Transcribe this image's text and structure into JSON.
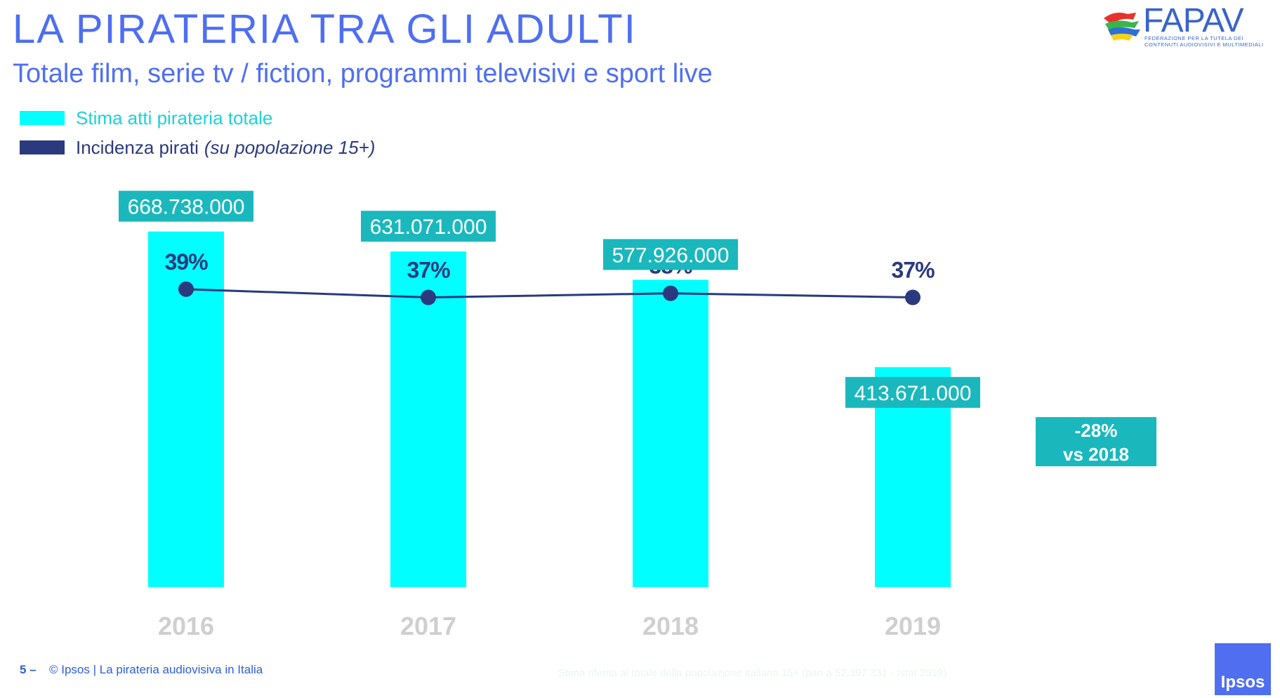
{
  "header": {
    "title": "LA PIRATERIA TRA GLI ADULTI",
    "subtitle": "Totale film, serie tv / fiction, programmi televisivi e sport live"
  },
  "legend": {
    "bars_label": "Stima atti pirateria totale",
    "line_label": "Incidenza pirati",
    "line_label_note": "(su popolazione 15+)"
  },
  "logo": {
    "name": "FAPAV",
    "tagline": "FEDERAZIONE PER LA TUTELA DEI CONTENUTI AUDIOVISIVI E MULTIMEDIALI"
  },
  "callout": {
    "line1": "-28%",
    "line2": "vs 2018"
  },
  "footer": {
    "page_number": "5 –",
    "text": "© Ipsos | La pirateria audiovisiva in Italia",
    "note": "Stima riferita al totale della popolazione italiana 15+ (pari a 52.397.331 - Istat 2019)",
    "ipsos_label": "Ipsos"
  },
  "colors": {
    "bars": "#00ffff",
    "line": "#2b3a7e",
    "title": "#4f6ff0",
    "year_labels": "#cfcfcf",
    "callout": "#1ab8bd"
  },
  "chart_data": {
    "type": "bar",
    "categories": [
      "2016",
      "2017",
      "2018",
      "2019"
    ],
    "series": [
      {
        "name": "Stima atti pirateria totale",
        "type": "bar",
        "values": [
          668738000,
          631071000,
          577926000,
          413671000
        ],
        "labels": [
          "668.738.000",
          "631.071.000",
          "577.926.000",
          "413.671.000"
        ]
      },
      {
        "name": "Incidenza pirati",
        "type": "line",
        "values": [
          39,
          37,
          38,
          37
        ],
        "labels": [
          "39%",
          "37%",
          "38%",
          "37%"
        ]
      }
    ],
    "ylim": [
      0,
      700000000
    ],
    "grid": false,
    "legend_position": "top-left"
  }
}
